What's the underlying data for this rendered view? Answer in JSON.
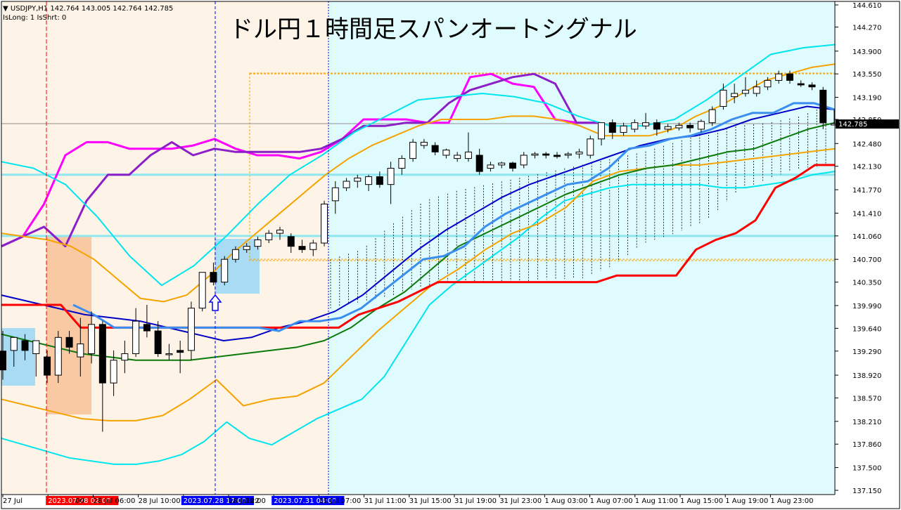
{
  "header": {
    "symbol_info": "▼ USDJPY,H1  142.764 143.005 142.764 142.785",
    "status": "IsLong: 1 IsShrt: 0",
    "title": "ドル円１時間足スパンオートシグナル"
  },
  "colors": {
    "zone_before": "#fdf3e6",
    "zone_after": "#dffbfd",
    "price_tag_bg": "#000000",
    "sell_box": "#f9c9a3",
    "buy_box": "#a9dcf4",
    "marker_red": "#ff0000",
    "marker_blue": "#0000ff"
  },
  "chart_data": {
    "type": "candlestick",
    "symbol": "USDJPY",
    "timeframe": "H1",
    "ylim": [
      137.15,
      144.61
    ],
    "y_ticks": [
      "144.610",
      "144.270",
      "143.900",
      "143.550",
      "143.190",
      "142.850",
      "142.480",
      "142.130",
      "141.770",
      "141.410",
      "141.060",
      "140.700",
      "140.350",
      "139.990",
      "139.640",
      "139.290",
      "138.920",
      "138.570",
      "138.210",
      "137.860",
      "137.500",
      "137.150"
    ],
    "current_price": "142.785",
    "x_labels": [
      "27 Jul",
      "2023.07.28 02:00",
      "28 Jul 06:00",
      "28 Jul 10:00",
      "2023.07.28 17:00",
      "28 Jul 22",
      "2023.07.31 04:00",
      "31 Jul 07:00",
      "31 Jul 11:00",
      "31 Jul 15:00",
      "31 Jul 19:00",
      "31 Jul 23:00",
      "1 Aug 03:00",
      "1 Aug 07:00",
      "1 Aug 11:00",
      "1 Aug 15:00",
      "1 Aug 19:00",
      "1 Aug 23:00"
    ],
    "x_label_extras": [
      "00",
      "18:00"
    ],
    "highlighted_labels": {
      "red": "2023.07.28 02:00",
      "blue": [
        "2023.07.28 17:00",
        "2023.07.31 04:00"
      ]
    },
    "candles": [
      {
        "o": 139.29,
        "h": 139.6,
        "l": 138.85,
        "c": 139.0
      },
      {
        "o": 139.3,
        "h": 139.45,
        "l": 139.05,
        "c": 139.5
      },
      {
        "o": 139.45,
        "h": 139.55,
        "l": 139.15,
        "c": 139.3
      },
      {
        "o": 139.25,
        "h": 139.4,
        "l": 138.9,
        "c": 139.45
      },
      {
        "o": 139.2,
        "h": 139.3,
        "l": 138.8,
        "c": 138.92
      },
      {
        "o": 138.92,
        "h": 139.6,
        "l": 138.8,
        "c": 139.5
      },
      {
        "o": 139.5,
        "h": 139.6,
        "l": 139.25,
        "c": 139.35
      },
      {
        "o": 139.2,
        "h": 139.8,
        "l": 138.9,
        "c": 139.4
      },
      {
        "o": 139.25,
        "h": 139.9,
        "l": 139.1,
        "c": 139.7
      },
      {
        "o": 139.7,
        "h": 139.75,
        "l": 138.05,
        "c": 138.8
      },
      {
        "o": 138.8,
        "h": 139.3,
        "l": 138.6,
        "c": 139.15
      },
      {
        "o": 139.15,
        "h": 139.45,
        "l": 138.95,
        "c": 139.25
      },
      {
        "o": 139.25,
        "h": 139.95,
        "l": 139.2,
        "c": 139.75
      },
      {
        "o": 139.7,
        "h": 140.0,
        "l": 139.5,
        "c": 139.6
      },
      {
        "o": 139.6,
        "h": 139.75,
        "l": 139.2,
        "c": 139.25
      },
      {
        "o": 139.25,
        "h": 139.4,
        "l": 139.15,
        "c": 139.25
      },
      {
        "o": 139.3,
        "h": 139.45,
        "l": 138.95,
        "c": 139.27
      },
      {
        "o": 139.3,
        "h": 140.05,
        "l": 139.15,
        "c": 139.95
      },
      {
        "o": 139.95,
        "h": 140.5,
        "l": 139.9,
        "c": 140.5
      },
      {
        "o": 140.5,
        "h": 140.65,
        "l": 140.3,
        "c": 140.35
      },
      {
        "o": 140.35,
        "h": 140.75,
        "l": 140.3,
        "c": 140.7
      },
      {
        "o": 140.7,
        "h": 140.9,
        "l": 140.65,
        "c": 140.85
      },
      {
        "o": 140.85,
        "h": 140.95,
        "l": 140.8,
        "c": 140.9
      },
      {
        "o": 140.9,
        "h": 141.05,
        "l": 140.85,
        "c": 141.0
      },
      {
        "o": 141.0,
        "h": 141.15,
        "l": 140.95,
        "c": 141.1
      },
      {
        "o": 141.1,
        "h": 141.2,
        "l": 141.0,
        "c": 141.15
      },
      {
        "o": 141.05,
        "h": 141.1,
        "l": 140.8,
        "c": 140.9
      },
      {
        "o": 140.9,
        "h": 141.0,
        "l": 140.8,
        "c": 140.85
      },
      {
        "o": 140.85,
        "h": 141.0,
        "l": 140.75,
        "c": 140.95
      },
      {
        "o": 140.95,
        "h": 141.6,
        "l": 140.9,
        "c": 141.55
      },
      {
        "o": 141.6,
        "h": 141.9,
        "l": 141.4,
        "c": 141.8
      },
      {
        "o": 141.8,
        "h": 141.95,
        "l": 141.75,
        "c": 141.9
      },
      {
        "o": 141.9,
        "h": 142.0,
        "l": 141.8,
        "c": 141.95
      },
      {
        "o": 141.85,
        "h": 142.0,
        "l": 141.75,
        "c": 141.97
      },
      {
        "o": 141.97,
        "h": 142.05,
        "l": 141.8,
        "c": 141.85
      },
      {
        "o": 141.85,
        "h": 142.2,
        "l": 141.55,
        "c": 142.1
      },
      {
        "o": 142.1,
        "h": 142.3,
        "l": 142.0,
        "c": 142.25
      },
      {
        "o": 142.25,
        "h": 142.55,
        "l": 142.2,
        "c": 142.5
      },
      {
        "o": 142.45,
        "h": 142.55,
        "l": 142.4,
        "c": 142.5
      },
      {
        "o": 142.45,
        "h": 142.5,
        "l": 142.3,
        "c": 142.35
      },
      {
        "o": 142.3,
        "h": 142.4,
        "l": 142.25,
        "c": 142.38
      },
      {
        "o": 142.25,
        "h": 142.35,
        "l": 142.2,
        "c": 142.3
      },
      {
        "o": 142.25,
        "h": 142.65,
        "l": 142.2,
        "c": 142.35
      },
      {
        "o": 142.3,
        "h": 142.4,
        "l": 142.0,
        "c": 142.05
      },
      {
        "o": 142.1,
        "h": 142.2,
        "l": 142.05,
        "c": 142.15
      },
      {
        "o": 142.15,
        "h": 142.2,
        "l": 142.1,
        "c": 142.18
      },
      {
        "o": 142.18,
        "h": 142.2,
        "l": 142.05,
        "c": 142.1
      },
      {
        "o": 142.15,
        "h": 142.35,
        "l": 142.1,
        "c": 142.3
      },
      {
        "o": 142.3,
        "h": 142.35,
        "l": 142.25,
        "c": 142.32
      },
      {
        "o": 142.32,
        "h": 142.35,
        "l": 142.25,
        "c": 142.3
      },
      {
        "o": 142.3,
        "h": 142.35,
        "l": 142.25,
        "c": 142.28
      },
      {
        "o": 142.3,
        "h": 142.35,
        "l": 142.25,
        "c": 142.32
      },
      {
        "o": 142.32,
        "h": 142.4,
        "l": 142.25,
        "c": 142.35
      },
      {
        "o": 142.3,
        "h": 142.6,
        "l": 142.25,
        "c": 142.55
      },
      {
        "o": 142.55,
        "h": 142.8,
        "l": 142.45,
        "c": 142.8
      },
      {
        "o": 142.8,
        "h": 142.85,
        "l": 142.55,
        "c": 142.65
      },
      {
        "o": 142.65,
        "h": 142.8,
        "l": 142.6,
        "c": 142.75
      },
      {
        "o": 142.7,
        "h": 142.85,
        "l": 142.65,
        "c": 142.8
      },
      {
        "o": 142.75,
        "h": 142.95,
        "l": 142.7,
        "c": 142.8
      },
      {
        "o": 142.8,
        "h": 142.85,
        "l": 142.6,
        "c": 142.7
      },
      {
        "o": 142.7,
        "h": 142.78,
        "l": 142.65,
        "c": 142.74
      },
      {
        "o": 142.72,
        "h": 142.8,
        "l": 142.68,
        "c": 142.76
      },
      {
        "o": 142.76,
        "h": 142.8,
        "l": 142.65,
        "c": 142.72
      },
      {
        "o": 142.7,
        "h": 142.85,
        "l": 142.65,
        "c": 142.82
      },
      {
        "o": 142.8,
        "h": 143.05,
        "l": 142.75,
        "c": 143.0
      },
      {
        "o": 143.05,
        "h": 143.4,
        "l": 143.0,
        "c": 143.3
      },
      {
        "o": 143.2,
        "h": 143.4,
        "l": 143.1,
        "c": 143.25
      },
      {
        "o": 143.25,
        "h": 143.5,
        "l": 143.2,
        "c": 143.3
      },
      {
        "o": 143.25,
        "h": 143.45,
        "l": 143.2,
        "c": 143.35
      },
      {
        "o": 143.35,
        "h": 143.5,
        "l": 143.3,
        "c": 143.45
      },
      {
        "o": 143.45,
        "h": 143.6,
        "l": 143.4,
        "c": 143.55
      },
      {
        "o": 143.55,
        "h": 143.6,
        "l": 143.4,
        "c": 143.45
      },
      {
        "o": 143.4,
        "h": 143.45,
        "l": 143.35,
        "c": 143.38
      },
      {
        "o": 143.38,
        "h": 143.42,
        "l": 143.3,
        "c": 143.35
      },
      {
        "o": 143.3,
        "h": 143.35,
        "l": 142.7,
        "c": 142.8
      },
      {
        "o": 142.764,
        "h": 143.005,
        "l": 142.764,
        "c": 142.785
      }
    ],
    "series": [
      {
        "color": "#00e5ee",
        "values": [
          137.95,
          137.85,
          137.75,
          137.65,
          137.6,
          137.55,
          137.55,
          137.6,
          137.7,
          137.9,
          138.2,
          137.95,
          137.85,
          138.05,
          138.25,
          138.4,
          138.55,
          138.9,
          139.45,
          140.0,
          140.3,
          140.55,
          140.8,
          141.05,
          141.35,
          141.6,
          141.7,
          141.8,
          141.85,
          141.85,
          141.85,
          141.85,
          141.8,
          141.8,
          141.85,
          141.9,
          142.0,
          142.05
        ]
      },
      {
        "color": "#f5a300",
        "values": [
          138.55,
          138.45,
          138.35,
          138.25,
          138.22,
          138.22,
          138.3,
          138.55,
          138.85,
          138.45,
          138.55,
          138.6,
          138.8,
          139.2,
          139.6,
          139.95,
          140.3,
          140.55,
          140.85,
          141.1,
          141.25,
          141.5,
          141.9,
          142.05,
          142.1,
          142.15,
          142.15,
          142.2,
          142.25,
          142.3,
          142.35,
          142.4
        ]
      },
      {
        "color": "#0a7a0a",
        "values": [
          139.55,
          139.45,
          139.35,
          139.25,
          139.2,
          139.15,
          139.15,
          139.15,
          139.2,
          139.25,
          139.3,
          139.35,
          139.45,
          139.65,
          139.95,
          140.2,
          140.55,
          140.9,
          141.1,
          141.3,
          141.5,
          141.7,
          141.85,
          142.0,
          142.1,
          142.15,
          142.25,
          142.35,
          142.4,
          142.55,
          142.7,
          142.8
        ]
      },
      {
        "color": "#0000c8",
        "values": [
          140.15,
          140.05,
          139.95,
          139.85,
          139.8,
          139.75,
          139.65,
          139.55,
          139.45,
          139.5,
          139.65,
          139.75,
          139.9,
          140.15,
          140.5,
          140.85,
          141.15,
          141.4,
          141.65,
          141.85,
          142.0,
          142.15,
          142.3,
          142.45,
          142.55,
          142.6,
          142.7,
          142.85,
          142.95,
          143.05,
          143.0
        ]
      },
      {
        "color": "#ff0000",
        "values": [
          140.0,
          140.0,
          140.0,
          140.0,
          139.65,
          139.65,
          139.65,
          139.65,
          139.65,
          139.65,
          139.65,
          139.65,
          139.65,
          139.65,
          139.65,
          139.65,
          139.65,
          139.65,
          139.85,
          139.95,
          140.05,
          140.2,
          140.35,
          140.35,
          140.35,
          140.35,
          140.35,
          140.35,
          140.35,
          140.35,
          140.35,
          140.45,
          140.45,
          140.45,
          140.45,
          140.85,
          141.0,
          141.1,
          141.3,
          141.8,
          141.95,
          142.15,
          142.15
        ]
      },
      {
        "color": "#3a8ef0",
        "values": [
          140.0,
          139.85,
          139.65,
          139.65,
          139.65,
          139.65,
          139.65,
          139.65,
          139.65,
          139.65,
          139.6,
          139.75,
          139.75,
          139.8,
          139.95,
          140.2,
          140.45,
          140.7,
          140.75,
          140.9,
          141.2,
          141.4,
          141.55,
          141.7,
          141.85,
          141.9,
          142.1,
          142.4,
          142.45,
          142.55,
          142.6,
          142.7,
          142.85,
          142.95,
          142.95,
          143.1,
          143.1,
          143.0
        ]
      },
      {
        "color": "#ff00ff",
        "values": [
          140.9,
          141.05,
          141.55,
          142.3,
          142.5,
          142.5,
          142.4,
          142.4,
          142.4,
          142.45,
          142.55,
          142.4,
          142.3,
          142.3,
          142.25,
          142.35,
          142.55,
          142.85,
          142.85,
          142.85,
          142.8,
          142.8,
          143.5,
          143.55,
          143.4,
          143.35,
          142.85,
          142.8,
          142.8
        ]
      },
      {
        "color": "#8c1ec8",
        "values": [
          140.9,
          141.05,
          141.2,
          140.9,
          141.6,
          142.0,
          142.0,
          142.3,
          142.5,
          142.3,
          142.4,
          142.35,
          142.35,
          142.35,
          142.35,
          142.4,
          142.55,
          142.75,
          142.75,
          142.8,
          142.8,
          143.1,
          143.3,
          143.4,
          143.5,
          143.55,
          143.4,
          142.8,
          142.8
        ]
      },
      {
        "color": "#f5a300",
        "values": [
          141.1,
          141.05,
          141.0,
          140.9,
          140.7,
          140.4,
          140.1,
          140.05,
          140.15,
          140.45,
          140.8,
          141.1,
          141.4,
          141.7,
          142.0,
          142.25,
          142.45,
          142.6,
          142.75,
          142.85,
          142.85,
          142.85,
          142.9,
          142.9,
          142.85,
          142.75,
          142.6,
          142.6,
          142.6,
          142.7,
          142.9,
          143.05,
          143.25,
          143.45,
          143.55,
          143.65,
          143.7
        ]
      },
      {
        "color": "#00e5ee",
        "values": [
          142.2,
          142.1,
          141.85,
          141.35,
          140.75,
          140.3,
          140.6,
          141.05,
          141.55,
          142.0,
          142.3,
          142.65,
          142.9,
          143.15,
          143.2,
          143.25,
          143.2,
          143.1,
          142.9,
          142.75,
          142.75,
          142.85,
          143.15,
          143.5,
          143.85,
          143.95,
          144.0
        ]
      }
    ],
    "cloud_top": [
      140.7,
      140.85,
      141.25,
      141.6,
      141.75,
      141.85,
      141.95,
      142.05,
      142.15,
      142.25,
      142.35,
      142.5,
      142.65,
      142.75,
      142.8,
      142.9,
      143.1
    ],
    "cloud_bottom": [
      139.95,
      140.05,
      140.15,
      140.3,
      140.35,
      140.35,
      140.35,
      140.4,
      140.4,
      140.6,
      140.95,
      141.1,
      141.3,
      141.75,
      141.95,
      142.1,
      142.15
    ],
    "h_lines": [
      {
        "value": 142.785,
        "color": "#909090",
        "style": "solid"
      },
      {
        "value": 143.55,
        "color": "#f5a300",
        "style": "dotted"
      },
      {
        "value": 140.7,
        "color": "#f5a300",
        "style": "dotted"
      },
      {
        "value": 142.0,
        "color": "#8ee6ee",
        "style": "solid"
      },
      {
        "value": 141.06,
        "color": "#8ee6ee",
        "style": "solid"
      }
    ],
    "signal_arrow": {
      "direction": "up",
      "price": 140.25
    }
  }
}
